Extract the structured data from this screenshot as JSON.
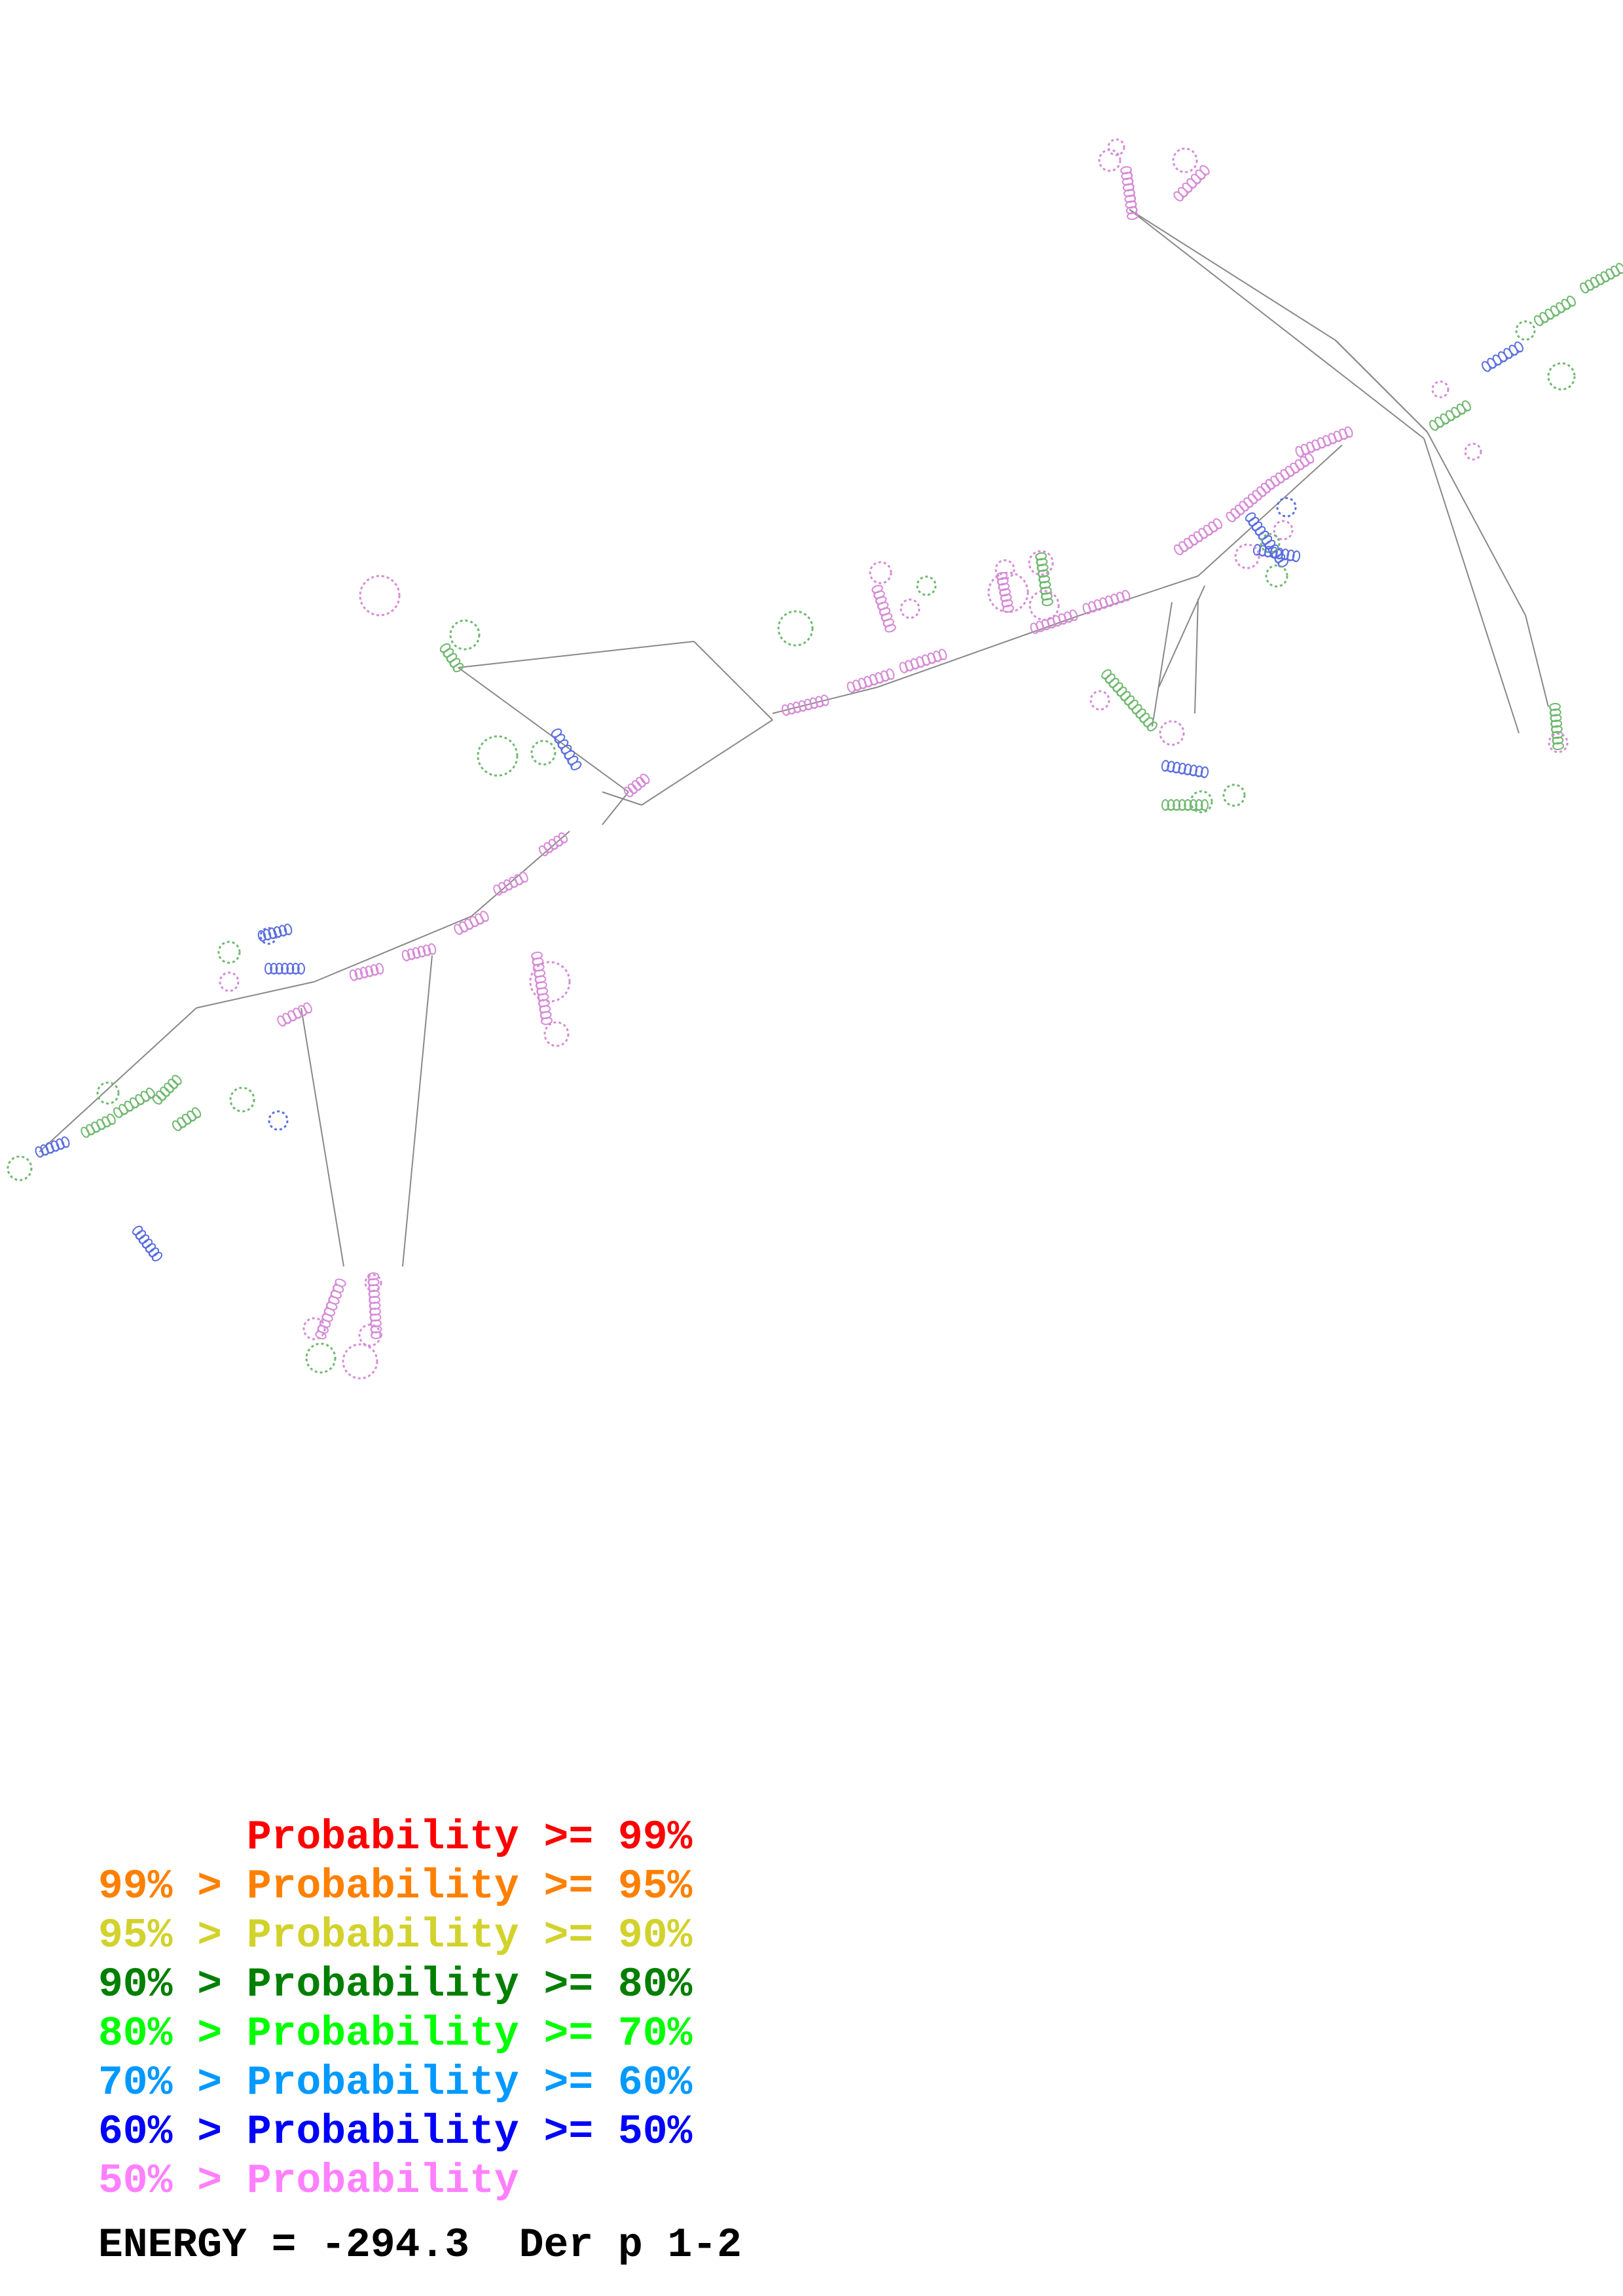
{
  "legend": {
    "rows": [
      {
        "text": "      Probability >= 99%",
        "color": "#ff0000"
      },
      {
        "text": "99% > Probability >= 95%",
        "color": "#ff8000"
      },
      {
        "text": "95% > Probability >= 90%",
        "color": "#d2d22d"
      },
      {
        "text": "90% > Probability >= 80%",
        "color": "#007f00"
      },
      {
        "text": "80% > Probability >= 70%",
        "color": "#00ff00"
      },
      {
        "text": "70% > Probability >= 60%",
        "color": "#0099ff"
      },
      {
        "text": "60% > Probability >= 50%",
        "color": "#0000ff"
      },
      {
        "text": "50% > Probability",
        "color": "#ff80ff"
      }
    ]
  },
  "energy_label": "ENERGY = -294.3  Der p 1-2",
  "colors": {
    "backbone": "#888888",
    "base_low": "#d68ad6",
    "base_mid": "#6fb86f",
    "base_blue": "#5b6ee0"
  }
}
